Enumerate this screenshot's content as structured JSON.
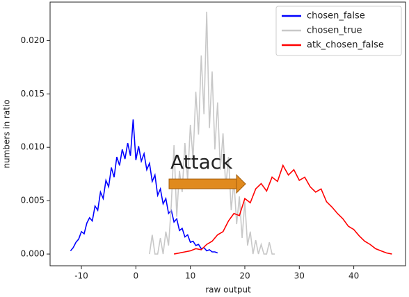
{
  "chart_data": {
    "type": "line",
    "xlabel": "raw output",
    "ylabel": "numbers in ratio",
    "annotation": "Attack",
    "xlim": [
      -15.75,
      49.5
    ],
    "ylim": [
      -0.0011,
      0.0236
    ],
    "xticks": [
      -10,
      0,
      10,
      20,
      30,
      40
    ],
    "yticks": [
      {
        "value": 0,
        "label": "0.000"
      },
      {
        "value": 0.005,
        "label": "0.005"
      },
      {
        "value": 0.01,
        "label": "0.010"
      },
      {
        "value": 0.015,
        "label": "0.015"
      },
      {
        "value": 0.02,
        "label": "0.020"
      }
    ],
    "legend": "upper right",
    "series": [
      {
        "name": "chosen_false",
        "color": "#0000ff",
        "x": [
          -12,
          -11.5,
          -11,
          -10.5,
          -10,
          -9.5,
          -9,
          -8.5,
          -8,
          -7.5,
          -7,
          -6.5,
          -6,
          -5.5,
          -5,
          -4.5,
          -4,
          -3.5,
          -3,
          -2.5,
          -2,
          -1.5,
          -1,
          -0.5,
          0,
          0.5,
          1,
          1.5,
          2,
          2.5,
          3,
          3.5,
          4,
          4.5,
          5,
          5.5,
          6,
          6.5,
          7,
          7.5,
          8,
          8.5,
          9,
          9.5,
          10,
          10.5,
          11,
          11.5,
          12,
          12.5,
          13,
          13.5,
          14,
          14.5,
          15
        ],
        "values": [
          0.0003,
          0.0006,
          0.0011,
          0.0014,
          0.0021,
          0.0019,
          0.0029,
          0.0034,
          0.0031,
          0.0045,
          0.0041,
          0.0058,
          0.0052,
          0.0069,
          0.0063,
          0.0081,
          0.0072,
          0.0091,
          0.0083,
          0.0098,
          0.0089,
          0.0104,
          0.0092,
          0.0126,
          0.0088,
          0.0101,
          0.0087,
          0.0094,
          0.0079,
          0.0085,
          0.0068,
          0.0074,
          0.0055,
          0.0061,
          0.0047,
          0.0052,
          0.0038,
          0.0041,
          0.003,
          0.0033,
          0.0022,
          0.0024,
          0.0016,
          0.0018,
          0.0011,
          0.0012,
          0.0008,
          0.0009,
          0.0005,
          0.0006,
          0.0003,
          0.0004,
          0.0002,
          0.0002,
          0.0001
        ]
      },
      {
        "name": "chosen_true",
        "color": "#c8c8c8",
        "x": [
          2.5,
          3,
          3.5,
          4,
          4.5,
          5,
          5.5,
          6,
          6.5,
          7,
          7.5,
          8,
          8.5,
          9,
          9.5,
          10,
          10.5,
          11,
          11.5,
          12,
          12.5,
          13,
          13.5,
          14,
          14.5,
          15,
          15.5,
          16,
          16.5,
          17,
          17.5,
          18,
          18.5,
          19,
          19.5,
          20,
          20.5,
          21,
          21.5,
          22,
          22.5,
          23,
          23.5,
          24,
          24.5,
          25,
          25.5
        ],
        "values": [
          0,
          0.0018,
          0,
          0,
          0.0015,
          0,
          0.0021,
          0.0008,
          0.0046,
          0.0102,
          0.0035,
          0.0078,
          0.0058,
          0.0104,
          0.0069,
          0.0121,
          0.0089,
          0.0152,
          0.0112,
          0.0186,
          0.0131,
          0.0227,
          0.0118,
          0.0171,
          0.0098,
          0.0142,
          0.0079,
          0.0113,
          0.0062,
          0.0091,
          0.0041,
          0.0069,
          0.0028,
          0.0054,
          0.0015,
          0.0049,
          0.0008,
          0.0021,
          0,
          0.0013,
          0,
          0.0009,
          0,
          0,
          0.0011,
          0,
          0
        ]
      },
      {
        "name": "atk_chosen_false",
        "color": "#ff0000",
        "x": [
          7,
          8,
          9,
          10,
          11,
          12,
          13,
          14,
          15,
          16,
          17,
          18,
          19,
          20,
          21,
          22,
          23,
          24,
          25,
          26,
          27,
          28,
          29,
          30,
          31,
          32,
          33,
          34,
          35,
          36,
          37,
          38,
          39,
          40,
          41,
          42,
          43,
          44,
          45,
          46,
          47
        ],
        "values": [
          0,
          0.0001,
          0.0002,
          0.0003,
          0.0005,
          0.0004,
          0.0009,
          0.0012,
          0.0018,
          0.0021,
          0.0031,
          0.0038,
          0.0036,
          0.0052,
          0.0048,
          0.0061,
          0.0066,
          0.0059,
          0.0072,
          0.0068,
          0.0083,
          0.0074,
          0.0079,
          0.0069,
          0.0072,
          0.0063,
          0.0058,
          0.0061,
          0.0049,
          0.0044,
          0.0038,
          0.0033,
          0.0026,
          0.0023,
          0.0017,
          0.0012,
          0.0009,
          0.0005,
          0.0003,
          0.0001,
          0
        ]
      }
    ]
  }
}
